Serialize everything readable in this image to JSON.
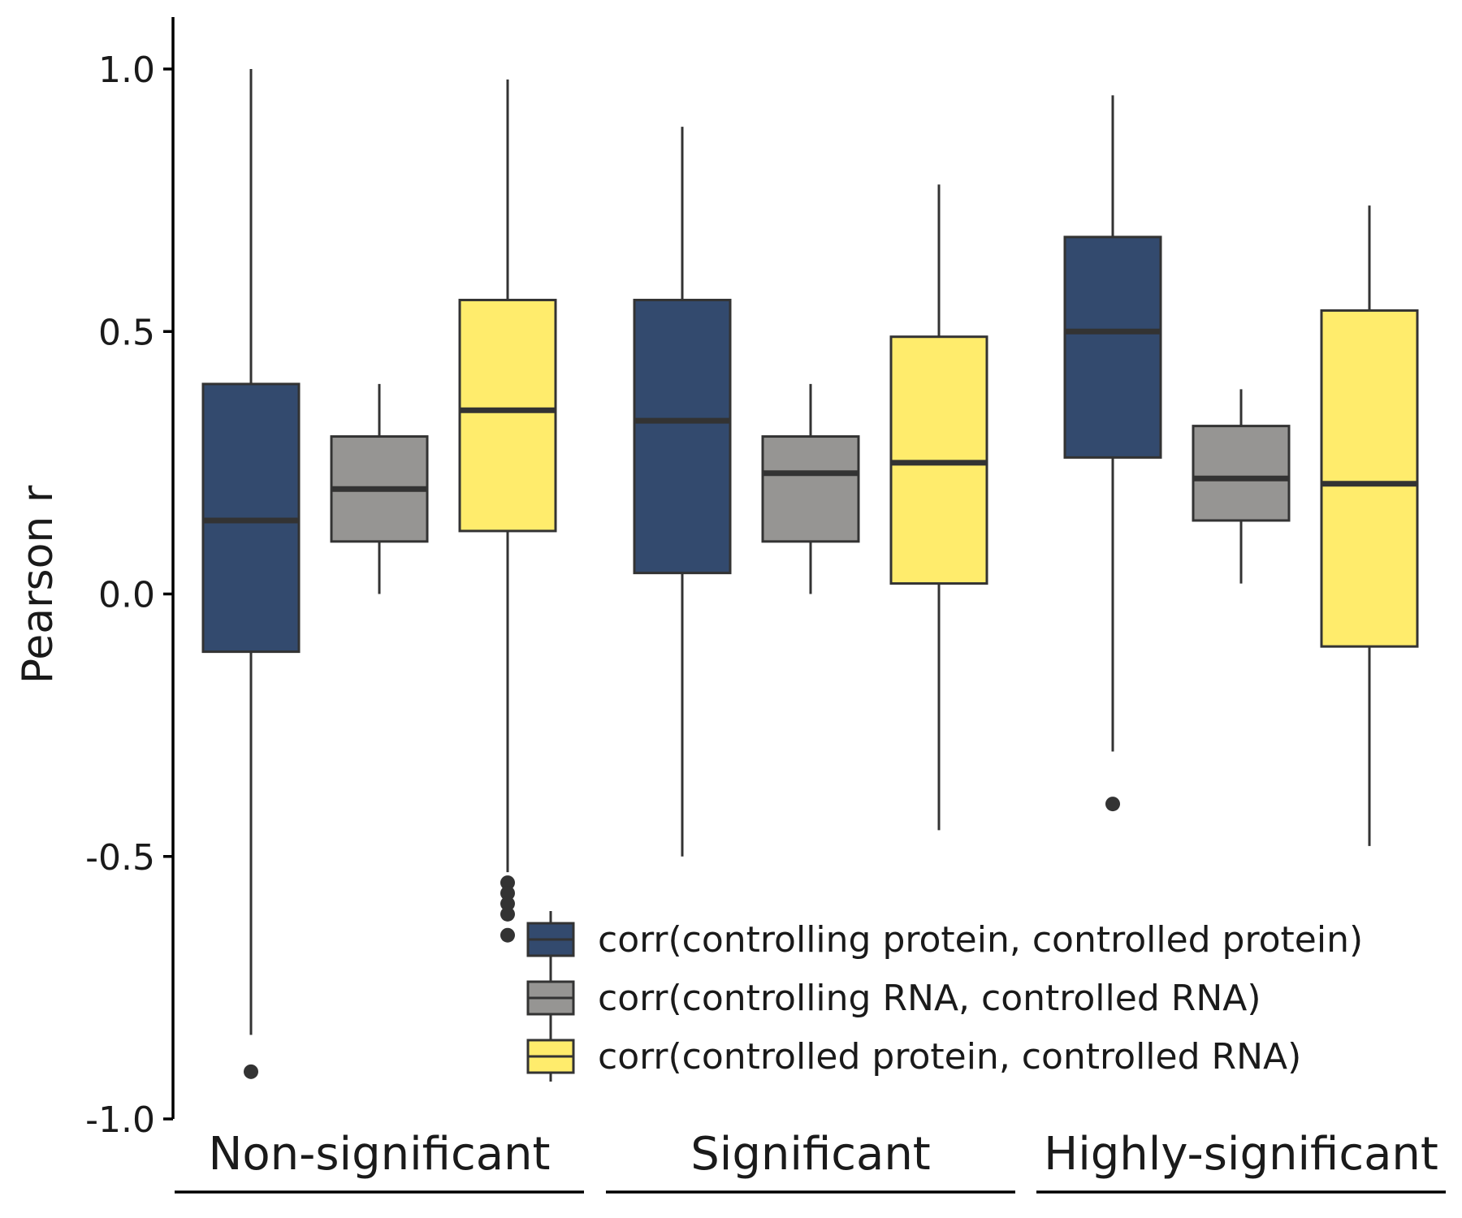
{
  "chart_data": {
    "type": "boxplot",
    "ylabel": "Pearson r",
    "ylim": [
      -1.0,
      1.0
    ],
    "yticks": [
      {
        "value": 1.0,
        "label": "1.0"
      },
      {
        "value": 0.5,
        "label": "0.5"
      },
      {
        "value": 0.0,
        "label": "0.0"
      },
      {
        "value": -0.5,
        "label": "-0.5"
      },
      {
        "value": -1.0,
        "label": "-1.0"
      }
    ],
    "grid": false,
    "legend_position": "bottom-right",
    "groups": [
      "Non-significant",
      "Significant",
      "Highly-significant"
    ],
    "series": [
      {
        "name": "corr(controlling protein, controlled protein)",
        "color": "#334A6E",
        "boxes": [
          {
            "whisker_low": -0.84,
            "q1": -0.11,
            "median": 0.14,
            "q3": 0.4,
            "whisker_high": 1.0,
            "outliers": [
              -0.91
            ]
          },
          {
            "whisker_low": -0.5,
            "q1": 0.04,
            "median": 0.33,
            "q3": 0.56,
            "whisker_high": 0.89,
            "outliers": []
          },
          {
            "whisker_low": -0.3,
            "q1": 0.26,
            "median": 0.5,
            "q3": 0.68,
            "whisker_high": 0.95,
            "outliers": [
              -0.4
            ]
          }
        ]
      },
      {
        "name": "corr(controlling RNA, controlled RNA)",
        "color": "#969593",
        "boxes": [
          {
            "whisker_low": 0.0,
            "q1": 0.1,
            "median": 0.2,
            "q3": 0.3,
            "whisker_high": 0.4,
            "outliers": []
          },
          {
            "whisker_low": 0.0,
            "q1": 0.1,
            "median": 0.23,
            "q3": 0.3,
            "whisker_high": 0.4,
            "outliers": []
          },
          {
            "whisker_low": 0.02,
            "q1": 0.14,
            "median": 0.22,
            "q3": 0.32,
            "whisker_high": 0.39,
            "outliers": []
          }
        ]
      },
      {
        "name": "corr(controlled protein, controlled RNA)",
        "color": "#FFEC6C",
        "boxes": [
          {
            "whisker_low": -0.53,
            "q1": 0.12,
            "median": 0.35,
            "q3": 0.56,
            "whisker_high": 0.98,
            "outliers": [
              -0.55,
              -0.57,
              -0.59,
              -0.61,
              -0.65
            ]
          },
          {
            "whisker_low": -0.45,
            "q1": 0.02,
            "median": 0.25,
            "q3": 0.49,
            "whisker_high": 0.78,
            "outliers": []
          },
          {
            "whisker_low": -0.48,
            "q1": -0.1,
            "median": 0.21,
            "q3": 0.54,
            "whisker_high": 0.74,
            "outliers": []
          }
        ]
      }
    ]
  }
}
